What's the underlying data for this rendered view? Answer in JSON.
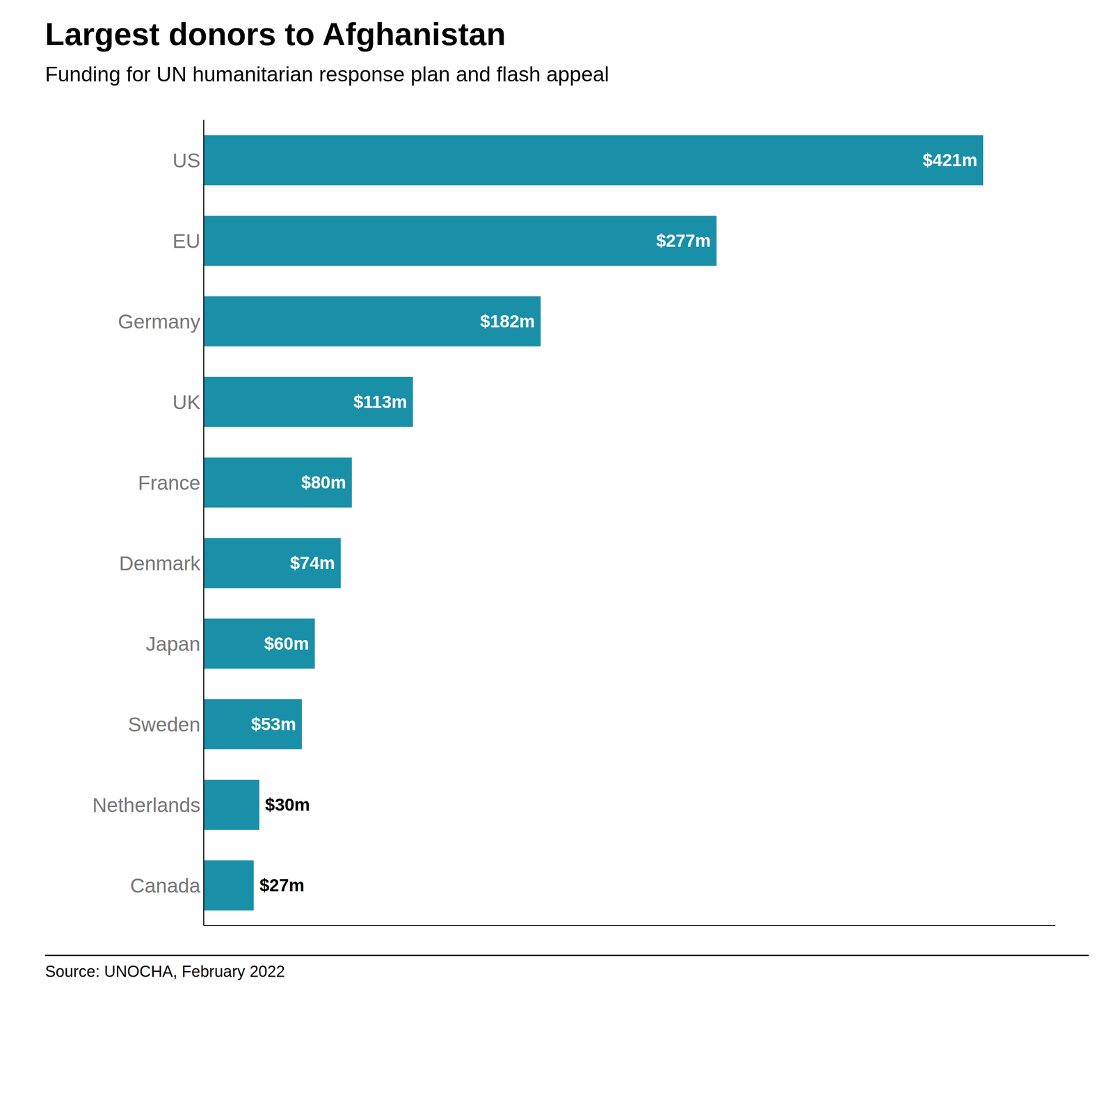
{
  "chart_data": {
    "type": "bar",
    "orientation": "horizontal",
    "title": "Largest donors to Afghanistan",
    "subtitle": "Funding for UN humanitarian response plan and flash appeal",
    "source": "Source: UNOCHA, February 2022",
    "categories": [
      "US",
      "EU",
      "Germany",
      "UK",
      "France",
      "Denmark",
      "Japan",
      "Sweden",
      "Netherlands",
      "Canada"
    ],
    "values": [
      421,
      277,
      182,
      113,
      80,
      74,
      60,
      53,
      30,
      27
    ],
    "value_labels": [
      "$421m",
      "$277m",
      "$182m",
      "$113m",
      "$80m",
      "$74m",
      "$60m",
      "$53m",
      "$30m",
      "$27m"
    ],
    "data_labels": true,
    "color": "#1a8fa8",
    "xlim": [
      0,
      460
    ],
    "tick_labels": "y",
    "grid": false
  }
}
